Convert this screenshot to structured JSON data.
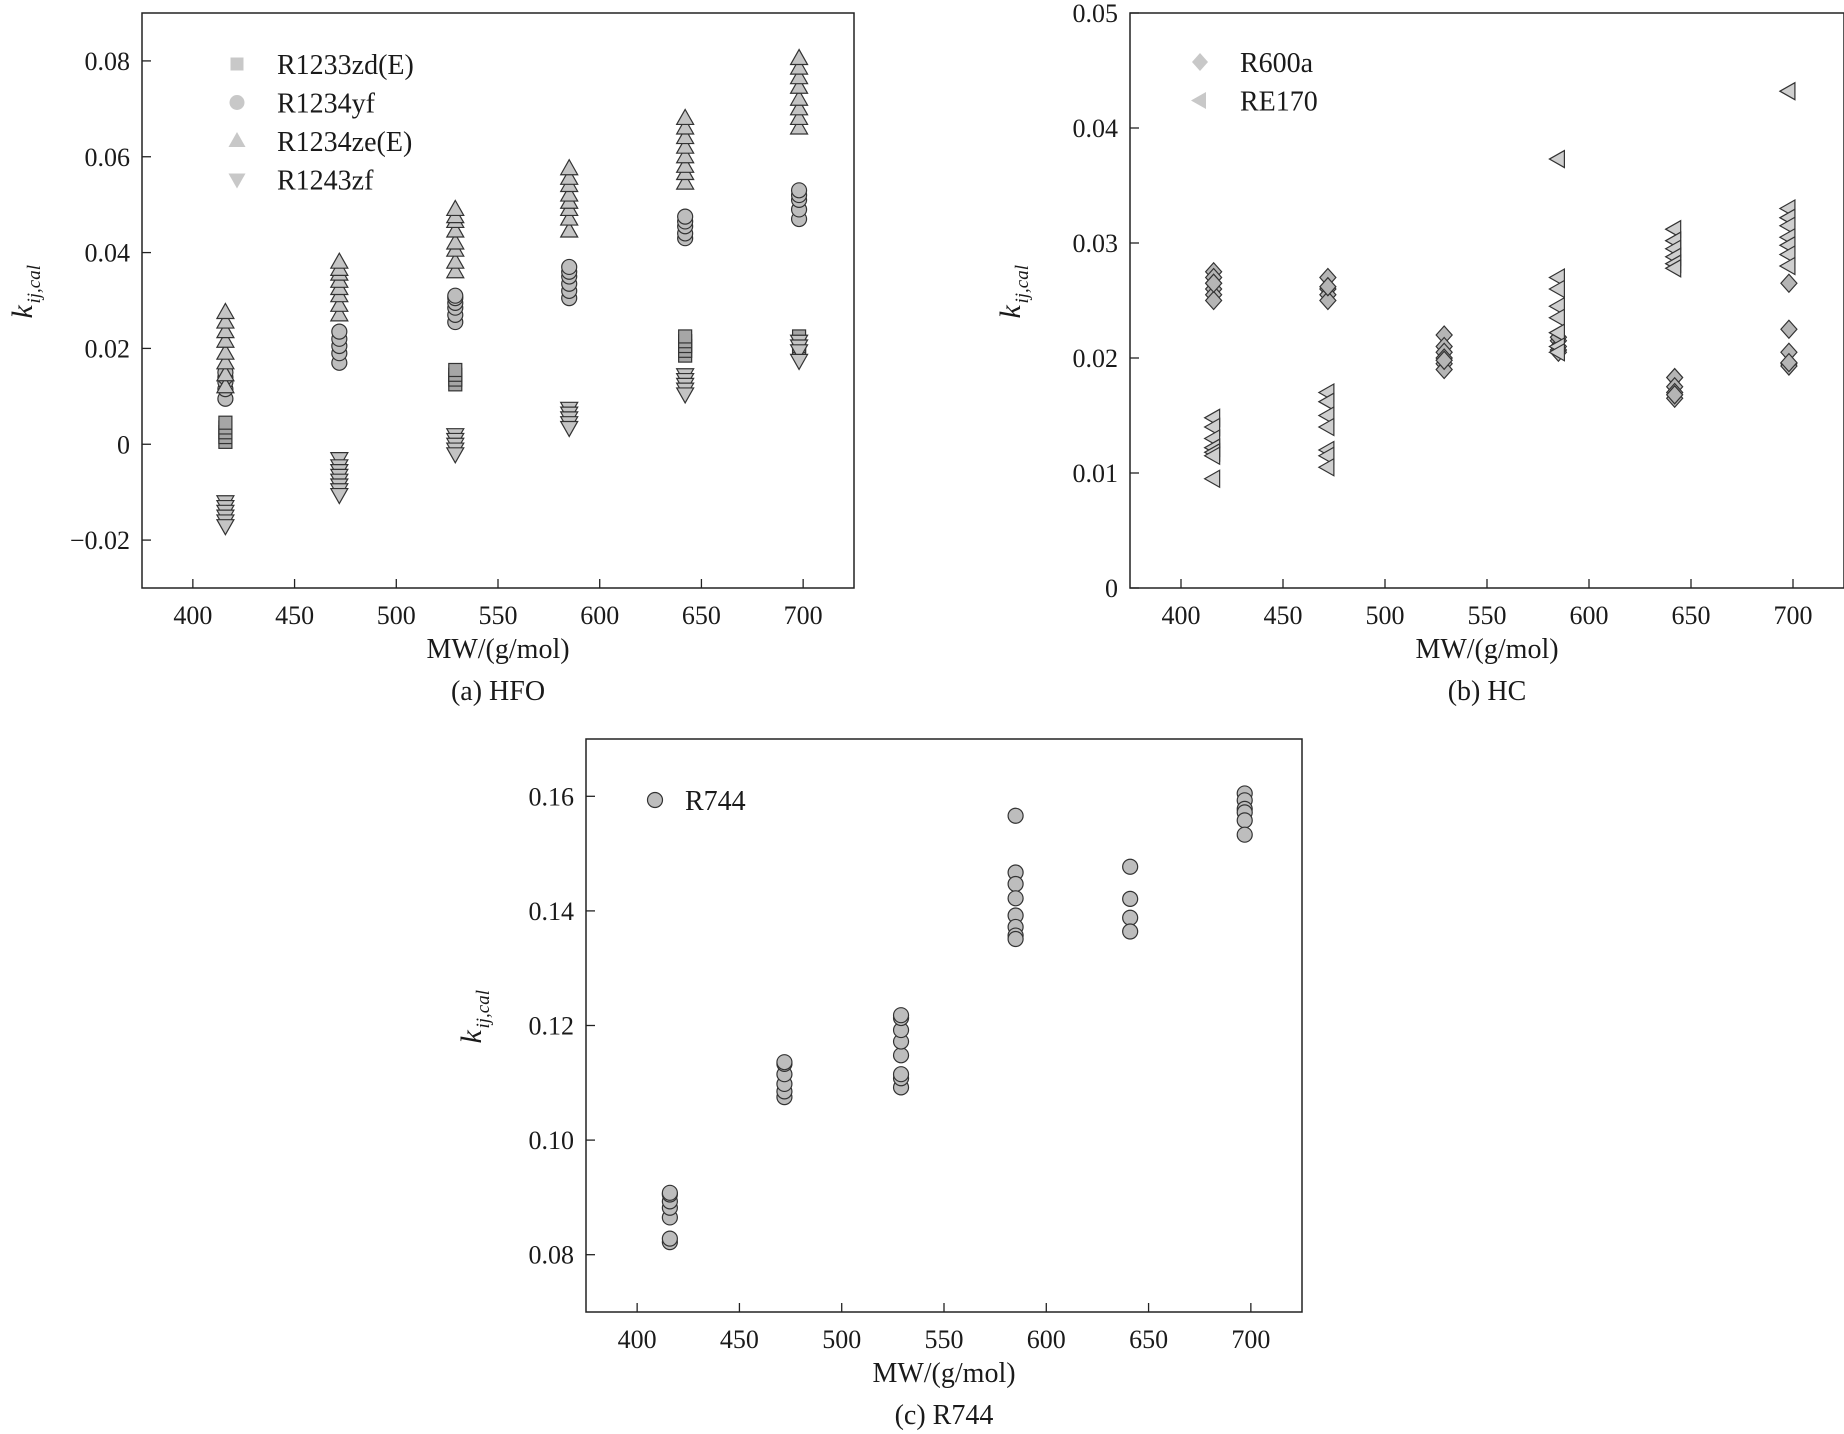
{
  "chart_data": [
    {
      "type": "scatter",
      "id": "a",
      "caption": "(a) HFO",
      "xlabel": "MW/(g/mol)",
      "ylabel_main": "k",
      "ylabel_sub": "ij,cal",
      "xlim": [
        375,
        725
      ],
      "ylim": [
        -0.03,
        0.09
      ],
      "xticks": [
        400,
        450,
        500,
        550,
        600,
        650,
        700
      ],
      "xtick_labels": [
        "400",
        "450",
        "500",
        "550",
        "600",
        "650",
        "700"
      ],
      "yticks": [
        -0.02,
        0,
        0.02,
        0.04,
        0.06,
        0.08
      ],
      "ytick_labels": [
        "−0.02",
        "0",
        "0.02",
        "0.04",
        "0.06",
        "0.08"
      ],
      "legend_position": "top-left",
      "series": [
        {
          "name": "R1233zd(E)",
          "marker": "square",
          "x": [
            416,
            416,
            416,
            416,
            416,
            529,
            529,
            529,
            529,
            642,
            642,
            642,
            642,
            642,
            698,
            698,
            698,
            698
          ],
          "y": [
            0.0005,
            0.0015,
            0.0025,
            0.0035,
            0.0045,
            0.0125,
            0.0135,
            0.0145,
            0.0155,
            0.0185,
            0.0195,
            0.0205,
            0.0215,
            0.0225,
            0.0195,
            0.0205,
            0.0215,
            0.0225
          ]
        },
        {
          "name": "R1234yf",
          "marker": "circle",
          "x": [
            416,
            416,
            416,
            416,
            416,
            472,
            472,
            472,
            472,
            472,
            529,
            529,
            529,
            529,
            529,
            529,
            585,
            585,
            585,
            585,
            585,
            585,
            642,
            642,
            642,
            642,
            642,
            698,
            698,
            698,
            698,
            698
          ],
          "y": [
            0.0095,
            0.0115,
            0.013,
            0.014,
            0.015,
            0.017,
            0.019,
            0.0205,
            0.022,
            0.0235,
            0.0255,
            0.027,
            0.0285,
            0.0295,
            0.0305,
            0.031,
            0.0305,
            0.032,
            0.0335,
            0.035,
            0.036,
            0.037,
            0.043,
            0.044,
            0.0455,
            0.0465,
            0.0475,
            0.047,
            0.049,
            0.051,
            0.052,
            0.053
          ]
        },
        {
          "name": "R1234ze(E)",
          "marker": "triangle-up",
          "x": [
            416,
            416,
            416,
            416,
            416,
            416,
            416,
            416,
            472,
            472,
            472,
            472,
            472,
            472,
            472,
            472,
            529,
            529,
            529,
            529,
            529,
            529,
            529,
            529,
            585,
            585,
            585,
            585,
            585,
            585,
            585,
            585,
            642,
            642,
            642,
            642,
            642,
            642,
            642,
            642,
            698,
            698,
            698,
            698,
            698,
            698,
            698,
            698
          ],
          "y": [
            0.012,
            0.0145,
            0.017,
            0.019,
            0.0215,
            0.0235,
            0.0255,
            0.0275,
            0.027,
            0.029,
            0.031,
            0.0325,
            0.034,
            0.0355,
            0.0365,
            0.038,
            0.036,
            0.038,
            0.0405,
            0.042,
            0.0445,
            0.0465,
            0.0475,
            0.049,
            0.0445,
            0.047,
            0.049,
            0.0505,
            0.052,
            0.054,
            0.0555,
            0.0575,
            0.0545,
            0.0565,
            0.058,
            0.06,
            0.062,
            0.064,
            0.066,
            0.068,
            0.066,
            0.068,
            0.07,
            0.072,
            0.0745,
            0.0765,
            0.0785,
            0.0805
          ]
        },
        {
          "name": "R1243zf",
          "marker": "triangle-down",
          "x": [
            416,
            416,
            416,
            416,
            416,
            416,
            472,
            472,
            472,
            472,
            472,
            472,
            472,
            472,
            529,
            529,
            529,
            529,
            529,
            585,
            585,
            585,
            585,
            585,
            642,
            642,
            642,
            642,
            642,
            698,
            698,
            698,
            698
          ],
          "y": [
            -0.012,
            -0.013,
            -0.014,
            -0.015,
            -0.016,
            -0.017,
            -0.003,
            -0.0045,
            -0.0055,
            -0.0065,
            -0.0075,
            -0.0085,
            -0.0095,
            -0.0105,
            0.002,
            0.001,
            0.0,
            -0.001,
            -0.002,
            0.0075,
            0.0065,
            0.0055,
            0.0045,
            0.0035,
            0.0145,
            0.0135,
            0.0125,
            0.0115,
            0.0105,
            0.0215,
            0.0205,
            0.0195,
            0.0175
          ]
        }
      ]
    },
    {
      "type": "scatter",
      "id": "b",
      "caption": "(b) HC",
      "xlabel": "MW/(g/mol)",
      "ylabel_main": "k",
      "ylabel_sub": "ij,cal",
      "xlim": [
        375,
        725
      ],
      "ylim": [
        0,
        0.05
      ],
      "xticks": [
        400,
        450,
        500,
        550,
        600,
        650,
        700
      ],
      "xtick_labels": [
        "400",
        "450",
        "500",
        "550",
        "600",
        "650",
        "700"
      ],
      "yticks": [
        0,
        0.01,
        0.02,
        0.03,
        0.04,
        0.05
      ],
      "ytick_labels": [
        "0",
        "0.01",
        "0.02",
        "0.03",
        "0.04",
        "0.05"
      ],
      "legend_position": "top-left",
      "series": [
        {
          "name": "R600a",
          "marker": "diamond",
          "x": [
            416,
            416,
            416,
            416,
            416,
            416,
            416,
            472,
            472,
            472,
            472,
            472,
            529,
            529,
            529,
            529,
            529,
            529,
            529,
            585,
            585,
            585,
            585,
            585,
            642,
            642,
            642,
            642,
            642,
            698,
            698,
            698,
            698,
            698,
            698
          ],
          "y": [
            0.0275,
            0.027,
            0.0265,
            0.026,
            0.0255,
            0.025,
            0.0265,
            0.027,
            0.026,
            0.0255,
            0.025,
            0.0262,
            0.022,
            0.021,
            0.0205,
            0.02,
            0.0195,
            0.019,
            0.0198,
            0.0215,
            0.021,
            0.0207,
            0.0205,
            0.0218,
            0.0183,
            0.0175,
            0.017,
            0.0165,
            0.0168,
            0.0265,
            0.0225,
            0.0205,
            0.0195,
            0.0193,
            0.0196
          ]
        },
        {
          "name": "RE170",
          "marker": "triangle-left",
          "x": [
            416,
            416,
            416,
            416,
            416,
            416,
            416,
            472,
            472,
            472,
            472,
            472,
            472,
            472,
            585,
            585,
            585,
            585,
            585,
            585,
            585,
            585,
            642,
            642,
            642,
            642,
            642,
            642,
            698,
            698,
            698,
            698,
            698,
            698,
            698,
            698
          ],
          "y": [
            0.0148,
            0.014,
            0.013,
            0.0122,
            0.0118,
            0.0115,
            0.0095,
            0.017,
            0.0162,
            0.015,
            0.014,
            0.012,
            0.0115,
            0.0105,
            0.0373,
            0.027,
            0.026,
            0.0245,
            0.0235,
            0.0222,
            0.021,
            0.0205,
            0.0312,
            0.0302,
            0.0295,
            0.0288,
            0.0282,
            0.0278,
            0.0432,
            0.033,
            0.0322,
            0.0315,
            0.0305,
            0.0298,
            0.029,
            0.028
          ]
        }
      ]
    },
    {
      "type": "scatter",
      "id": "c",
      "caption": "(c) R744",
      "xlabel": "MW/(g/mol)",
      "ylabel_main": "k",
      "ylabel_sub": "ij,cal",
      "xlim": [
        375,
        725
      ],
      "ylim": [
        0.07,
        0.17
      ],
      "xticks": [
        400,
        450,
        500,
        550,
        600,
        650,
        700
      ],
      "xtick_labels": [
        "400",
        "450",
        "500",
        "550",
        "600",
        "650",
        "700"
      ],
      "yticks": [
        0.08,
        0.1,
        0.12,
        0.14,
        0.16
      ],
      "ytick_labels": [
        "0.08",
        "0.10",
        "0.12",
        "0.14",
        "0.16"
      ],
      "legend_position": "top-left",
      "series": [
        {
          "name": "R744",
          "marker": "circle",
          "x": [
            416,
            416,
            416,
            416,
            416,
            416,
            416,
            472,
            472,
            472,
            472,
            472,
            472,
            529,
            529,
            529,
            529,
            529,
            529,
            529,
            529,
            585,
            585,
            585,
            585,
            585,
            585,
            585,
            585,
            641,
            641,
            641,
            641,
            697,
            697,
            697,
            697,
            697,
            697
          ],
          "y": [
            0.0822,
            0.0828,
            0.0865,
            0.0882,
            0.0893,
            0.0905,
            0.0908,
            0.1075,
            0.1085,
            0.1098,
            0.1115,
            0.1133,
            0.1136,
            0.1092,
            0.1108,
            0.1115,
            0.1148,
            0.1172,
            0.1192,
            0.1213,
            0.1218,
            0.1566,
            0.1467,
            0.1447,
            0.1422,
            0.1392,
            0.1372,
            0.1357,
            0.1351,
            0.1477,
            0.1421,
            0.1388,
            0.1364,
            0.1605,
            0.1593,
            0.1578,
            0.1572,
            0.1558,
            0.1533
          ]
        }
      ]
    }
  ]
}
